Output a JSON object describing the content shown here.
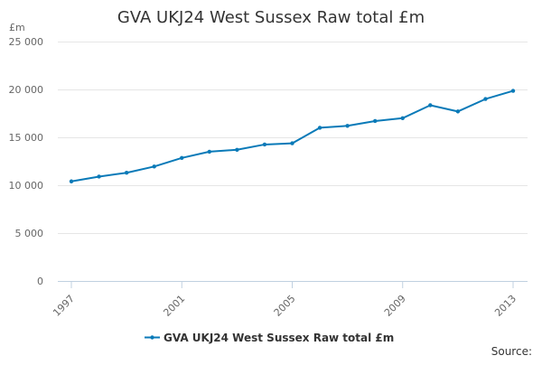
{
  "chart_data": {
    "type": "line",
    "title": "GVA UKJ24 West Sussex Raw total £m",
    "ylabel": "£m",
    "xlabel": "",
    "x": [
      1997,
      1998,
      1999,
      2000,
      2001,
      2002,
      2003,
      2004,
      2005,
      2006,
      2007,
      2008,
      2009,
      2010,
      2011,
      2012,
      2013
    ],
    "x_tick_labels": [
      "1997",
      "2001",
      "2005",
      "2009",
      "2013"
    ],
    "y_tick_labels": [
      "0",
      "5 000",
      "10 000",
      "15 000",
      "20 000",
      "25 000"
    ],
    "ylim": [
      0,
      25000
    ],
    "grid": true,
    "legend_position": "bottom",
    "series": [
      {
        "name": "GVA UKJ24 West Sussex Raw total £m",
        "color": "#0a7ab8",
        "values": [
          10400,
          10900,
          11300,
          11950,
          12850,
          13500,
          13700,
          14250,
          14380,
          16000,
          16200,
          16700,
          17000,
          18350,
          17700,
          19000,
          19850
        ]
      }
    ],
    "source_label": "Source:"
  }
}
